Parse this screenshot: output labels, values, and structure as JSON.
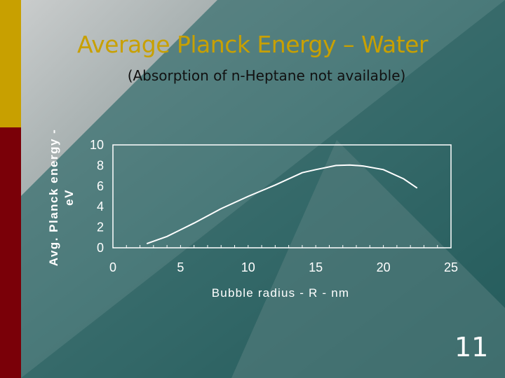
{
  "slide": {
    "title": "Average Planck Energy – Water",
    "subtitle": "(Absorption of n-Heptane not available)",
    "number": "11"
  },
  "colors": {
    "accent_gold": "#C8A000",
    "accent_red": "#7A0008",
    "background_light": "#C9C9C9",
    "background_teal": "#245F5F",
    "line": "#FFFFFF"
  },
  "chart_data": {
    "type": "line",
    "title": "",
    "xlabel": "Bubble radius - R - nm",
    "ylabel_lines": [
      "Avg. Planck energy -",
      "eV"
    ],
    "xlim": [
      0,
      25
    ],
    "ylim": [
      0,
      10
    ],
    "xticks": [
      0,
      5,
      10,
      15,
      20,
      25
    ],
    "yticks": [
      0,
      2,
      4,
      6,
      8,
      10
    ],
    "grid": false,
    "series": [
      {
        "x": [
          2.5,
          4,
          6,
          8,
          10,
          12,
          14,
          15,
          16.5,
          17.5,
          18.5,
          20,
          21.5,
          22.5
        ],
        "y": [
          0.4,
          1.1,
          2.4,
          3.8,
          5.0,
          6.1,
          7.3,
          7.6,
          8.0,
          8.05,
          7.95,
          7.6,
          6.7,
          5.8
        ]
      }
    ]
  }
}
